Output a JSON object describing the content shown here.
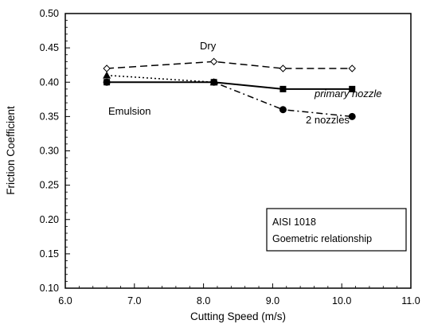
{
  "chart_data": {
    "type": "line",
    "title": "",
    "xlabel": "Cutting Speed (m/s)",
    "ylabel": "Friction Coefficient",
    "xlim": [
      6.0,
      11.0
    ],
    "ylim": [
      0.1,
      0.5
    ],
    "xticks": [
      "6.0",
      "7.0",
      "8.0",
      "9.0",
      "10.0",
      "11.0"
    ],
    "yticks": [
      "0.10",
      "0.15",
      "0.20",
      "0.25",
      "0.30",
      "0.35",
      "0.40",
      "0.45",
      "0.50"
    ],
    "grid": false,
    "series": [
      {
        "name": "Dry",
        "x": [
          6.6,
          8.15,
          9.15,
          10.15
        ],
        "y": [
          0.42,
          0.43,
          0.42,
          0.42
        ],
        "line": "dashed",
        "marker": "open-diamond"
      },
      {
        "name": "Emulsion",
        "x": [
          6.6,
          8.15
        ],
        "y": [
          0.41,
          0.4
        ],
        "line": "dotted",
        "marker": "filled-triangle"
      },
      {
        "name": "primary nozzle",
        "x": [
          6.6,
          8.15,
          9.15,
          10.15
        ],
        "y": [
          0.4,
          0.4,
          0.39,
          0.39
        ],
        "line": "solid",
        "marker": "filled-square"
      },
      {
        "name": "2 nozzles",
        "x": [
          6.6,
          8.15,
          9.15,
          10.15
        ],
        "y": [
          0.4,
          0.4,
          0.36,
          0.35
        ],
        "line": "dash-dot",
        "marker": "filled-circle"
      }
    ],
    "legend_box": {
      "lines": [
        "AISI 1018",
        "Goemetric relationship"
      ],
      "placement": "bottom-right"
    }
  }
}
